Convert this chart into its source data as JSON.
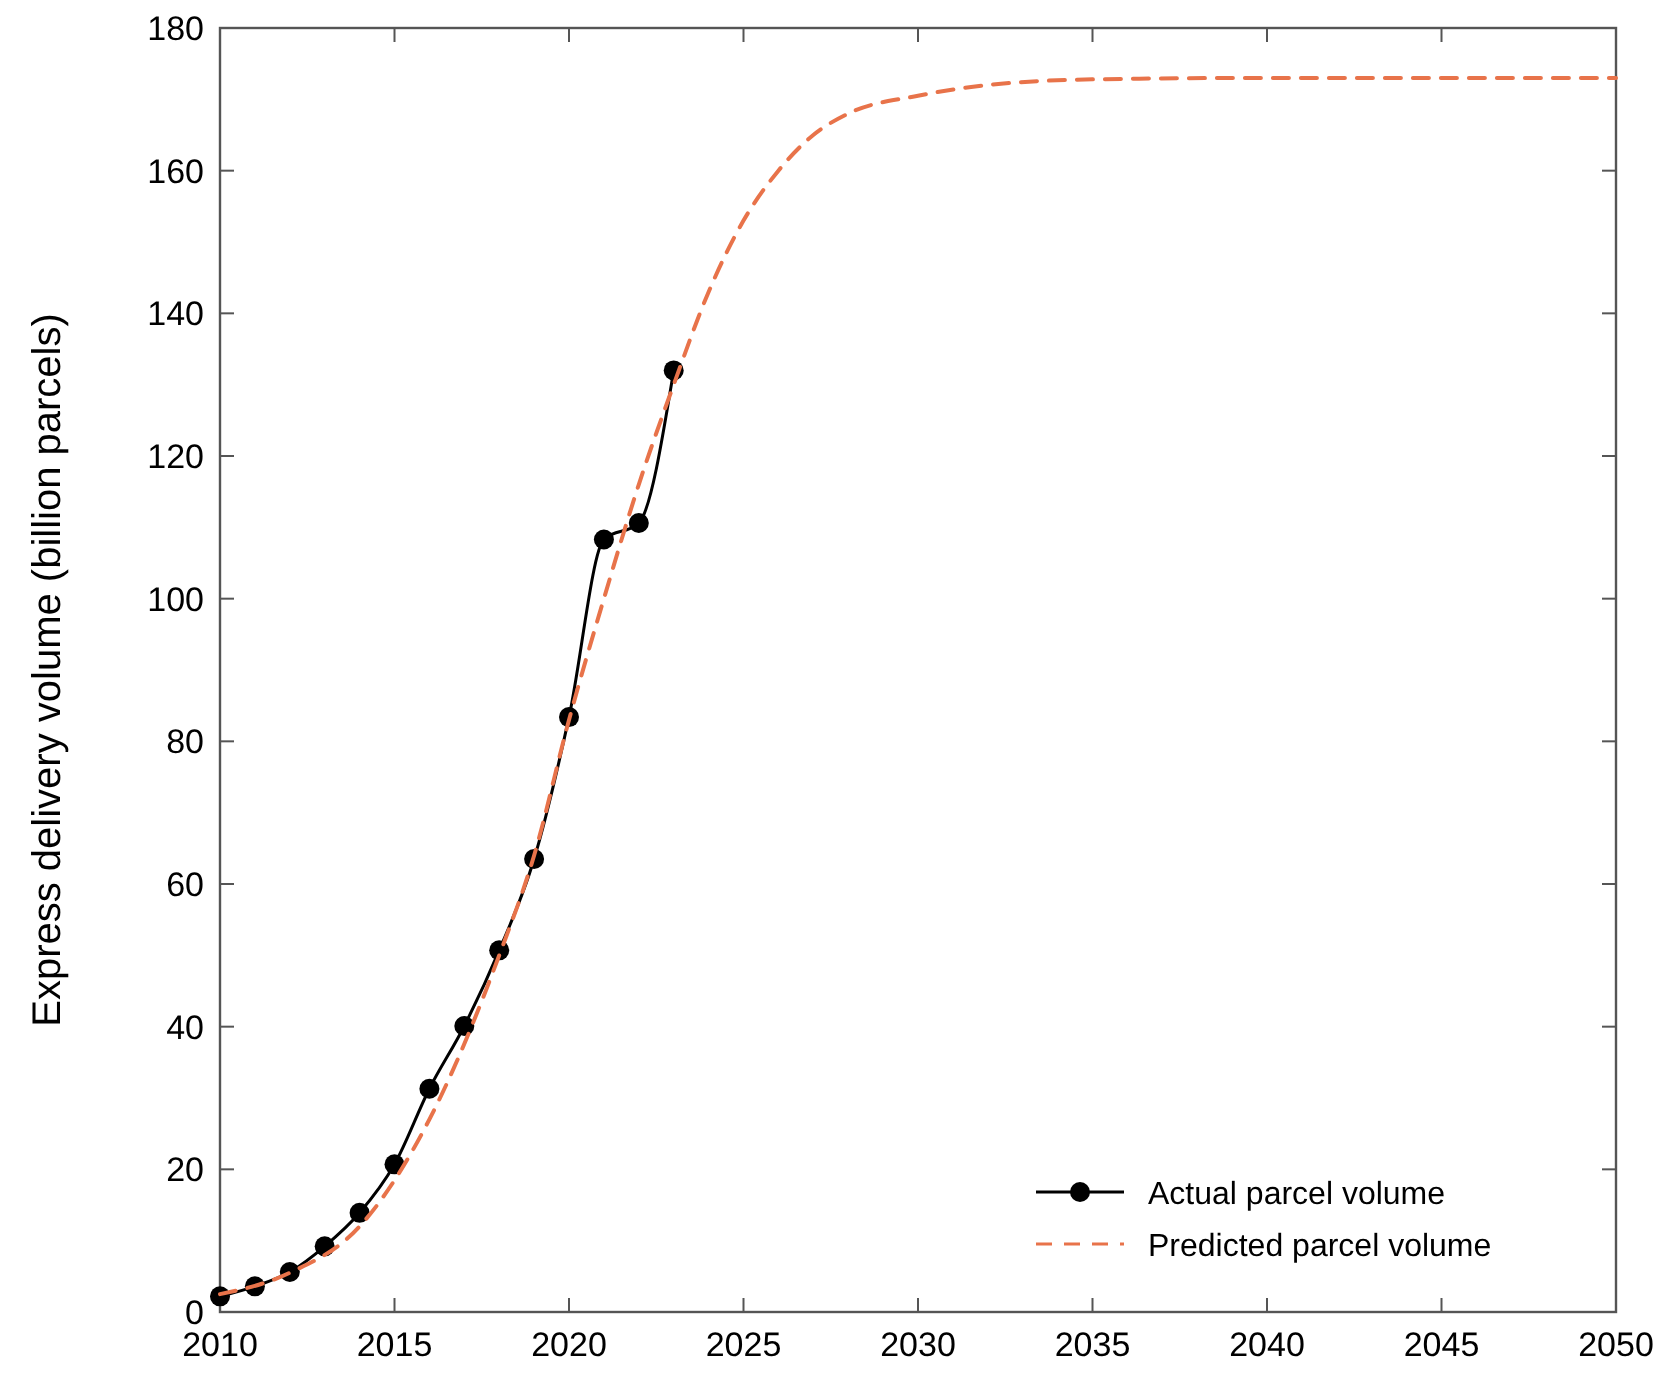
{
  "chart_data": {
    "type": "line",
    "ylabel": "Express delivery volume (billion parcels)",
    "xlim": [
      2010,
      2050
    ],
    "xticks": [
      2010,
      2015,
      2020,
      2025,
      2030,
      2035,
      2040,
      2045,
      2050
    ],
    "ylim": [
      0,
      180
    ],
    "yticks": [
      0,
      20,
      40,
      60,
      80,
      100,
      120,
      140,
      160,
      180
    ],
    "legend": "bottom right",
    "grid": false,
    "series": [
      {
        "name": "Actual parcel volume",
        "color": "#000000",
        "marker": "circle",
        "line_style": "solid",
        "x": [
          2010,
          2011,
          2012,
          2013,
          2014,
          2015,
          2016,
          2017,
          2018,
          2019,
          2020,
          2021,
          2022,
          2023
        ],
        "values": [
          2.2,
          3.6,
          5.6,
          9.2,
          13.9,
          20.7,
          31.3,
          40.1,
          50.7,
          63.5,
          83.4,
          108.3,
          110.6,
          132
        ]
      },
      {
        "name": "Predicted parcel volume",
        "color": "#e8734a",
        "marker": "none",
        "line_style": "dashed",
        "x": [
          2010,
          2012,
          2014,
          2016,
          2018,
          2019,
          2020,
          2021,
          2022,
          2023,
          2024,
          2025,
          2026,
          2027,
          2028,
          2030,
          2032,
          2035,
          2040,
          2050
        ],
        "values": [
          2.5,
          5.5,
          12,
          27,
          50,
          64,
          83,
          100,
          116,
          130,
          143,
          153,
          160,
          165,
          168,
          170.5,
          172,
          172.8,
          173,
          173
        ]
      }
    ]
  }
}
